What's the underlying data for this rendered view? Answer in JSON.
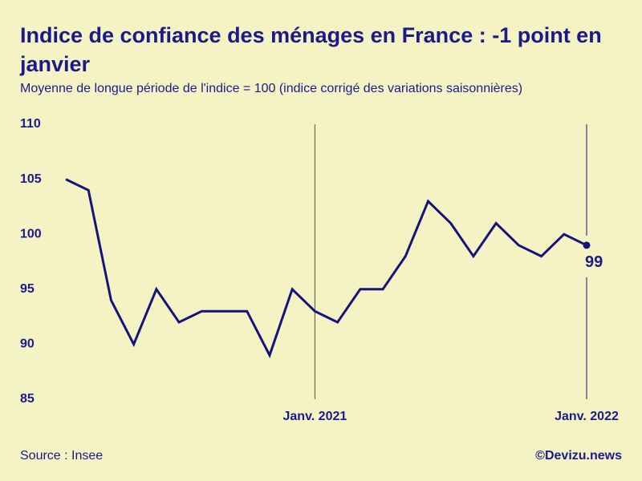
{
  "chart_data": {
    "type": "line",
    "title": "Indice de confiance des ménages en France : -1 point en janvier",
    "subtitle": "Moyenne de longue période de l'indice = 100 (indice corrigé des variations saisonnières)",
    "categories": [
      null,
      null,
      null,
      null,
      null,
      null,
      null,
      null,
      null,
      null,
      null,
      "Janv. 2021",
      null,
      null,
      null,
      null,
      null,
      null,
      null,
      null,
      null,
      null,
      null,
      "Janv. 2022"
    ],
    "series": [
      {
        "name": "Indice de confiance des ménages",
        "color": "#14147a",
        "values": [
          105,
          104,
          94,
          90,
          95,
          92,
          93,
          93,
          93,
          89,
          95,
          93,
          92,
          95,
          95,
          98,
          103,
          101,
          98,
          101,
          99,
          98,
          100,
          99
        ]
      }
    ],
    "ylim": [
      85,
      110
    ],
    "yticks": [
      85,
      90,
      95,
      100,
      105,
      110
    ],
    "grid": false,
    "source": "Source : Insee",
    "credit": "©Devizu.news"
  }
}
